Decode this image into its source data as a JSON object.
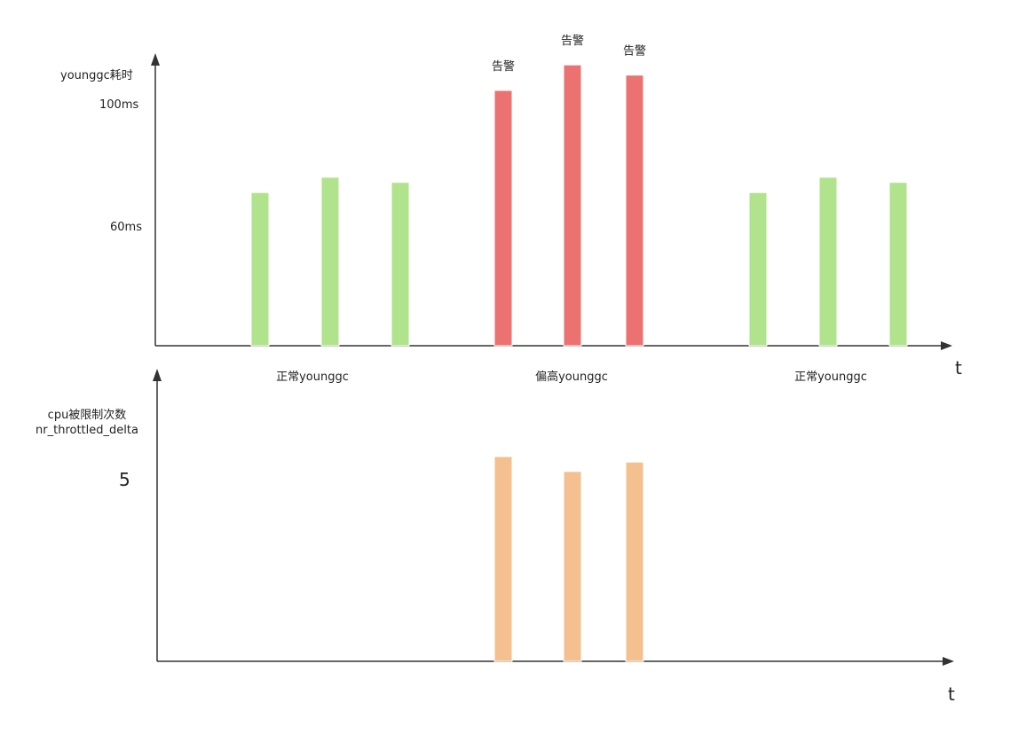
{
  "chart_data": [
    {
      "type": "bar",
      "ylabel": "younggc耗时",
      "xlabel": "t",
      "ytick_labels": [
        "100ms",
        "60ms"
      ],
      "ytick_values": [
        100,
        60
      ],
      "ylim": [
        0,
        120
      ],
      "groups": [
        {
          "label": "正常younggc",
          "color": "#b0e38c",
          "values": [
            60,
            66,
            64
          ]
        },
        {
          "label": "偏高younggc",
          "color": "#ec7272",
          "values": [
            100,
            110,
            106
          ],
          "annotations": [
            "告警",
            "告警",
            "告警"
          ]
        },
        {
          "label": "正常younggc",
          "color": "#b0e38c",
          "values": [
            60,
            66,
            64
          ]
        }
      ],
      "grid": false
    },
    {
      "type": "bar",
      "ylabel_lines": [
        "cpu被限制次数",
        "nr_throttled_delta"
      ],
      "xlabel": "t",
      "ytick_labels": [
        "5"
      ],
      "ytick_values": [
        5
      ],
      "ylim": [
        0,
        7.2
      ],
      "groups": [
        {
          "label": "",
          "color": "#f5c08f",
          "values": [
            0,
            0,
            0
          ]
        },
        {
          "label": "",
          "color": "#f5c08f",
          "values": [
            5.5,
            5.1,
            5.35
          ]
        },
        {
          "label": "",
          "color": "#f5c08f",
          "values": [
            0,
            0,
            0
          ]
        }
      ],
      "grid": false
    }
  ]
}
